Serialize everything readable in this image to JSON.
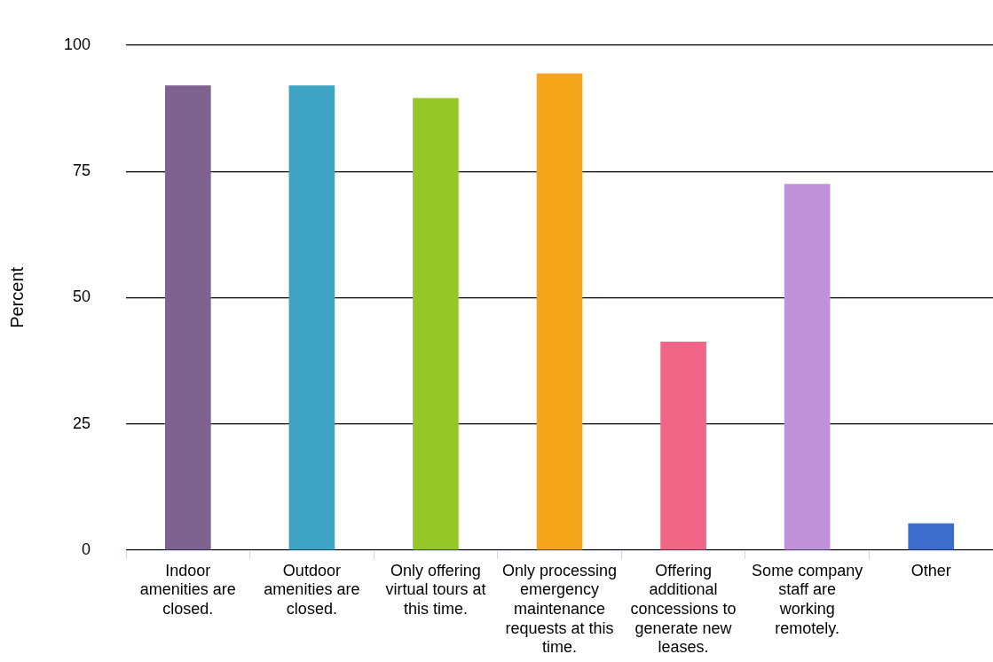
{
  "chart_data": {
    "type": "bar",
    "ylabel": "Percent",
    "categories": [
      "Indoor amenities are closed.",
      "Outdoor amenities are closed.",
      "Only offering virtual tours at this time.",
      "Only processing emergency maintenance requests at this time.",
      "Offering additional concessions to generate new leases.",
      "Some company staff are working remotely.",
      "Other"
    ],
    "values": [
      92,
      92,
      89.5,
      94.4,
      41.3,
      72.5,
      5.3
    ],
    "colors": [
      "#7e628f",
      "#3fa4c4",
      "#95c826",
      "#f5a519",
      "#f06586",
      "#c092da",
      "#3d6dcc"
    ],
    "ylim": [
      0,
      100
    ],
    "yticks": [
      0,
      25,
      50,
      75,
      100
    ],
    "grid": "y",
    "legend": false
  }
}
